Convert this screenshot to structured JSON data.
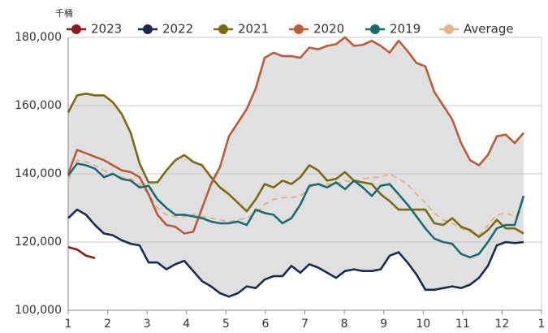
{
  "chart_data": {
    "type": "line",
    "y_label": "千桶",
    "x": [
      1,
      1.226,
      1.453,
      1.679,
      1.906,
      2.132,
      2.358,
      2.585,
      2.811,
      3.038,
      3.264,
      3.49,
      3.717,
      3.943,
      4.17,
      4.396,
      4.622,
      4.849,
      5.075,
      5.302,
      5.528,
      5.754,
      5.981,
      6.207,
      6.434,
      6.66,
      6.886,
      7.113,
      7.339,
      7.566,
      7.792,
      8.018,
      8.245,
      8.471,
      8.698,
      8.924,
      9.15,
      9.377,
      9.603,
      9.83,
      10.056,
      10.282,
      10.509,
      10.735,
      10.962,
      11.188,
      11.414,
      11.641,
      11.867,
      12.094,
      12.32,
      12.546
    ],
    "series": [
      {
        "name": "2023",
        "color": "#8b1a1a",
        "values": [
          118500,
          117800,
          116000,
          115300,
          null,
          null,
          null,
          null,
          null,
          null,
          null,
          null,
          null,
          null,
          null,
          null,
          null,
          null,
          null,
          null,
          null,
          null,
          null,
          null,
          null,
          null,
          null,
          null,
          null,
          null,
          null,
          null,
          null,
          null,
          null,
          null,
          null,
          null,
          null,
          null,
          null,
          null,
          null,
          null,
          null,
          null,
          null,
          null,
          null,
          null,
          null,
          null
        ]
      },
      {
        "name": "2022",
        "color": "#1a2b4c",
        "values": [
          127000,
          129500,
          128000,
          125000,
          122500,
          122000,
          120500,
          119500,
          119000,
          114000,
          114000,
          112000,
          113500,
          114500,
          111500,
          108500,
          107000,
          105000,
          104000,
          105000,
          107000,
          106500,
          109000,
          110000,
          110000,
          113000,
          111000,
          113500,
          112500,
          111000,
          109500,
          111500,
          112000,
          111500,
          111500,
          112000,
          116000,
          117000,
          114000,
          110500,
          106000,
          106000,
          106500,
          107000,
          106500,
          107500,
          109500,
          113000,
          119000,
          120000,
          119700,
          120000
        ]
      },
      {
        "name": "2021",
        "color": "#7a6a12",
        "values": [
          158000,
          163000,
          163500,
          163000,
          163000,
          161000,
          157500,
          152000,
          143000,
          137500,
          137500,
          141000,
          144000,
          145500,
          143500,
          142500,
          139000,
          136000,
          134000,
          131500,
          129000,
          132500,
          137000,
          136000,
          138000,
          137000,
          139000,
          142500,
          141000,
          138000,
          138500,
          140500,
          138000,
          137500,
          137000,
          134000,
          132000,
          129500,
          129500,
          129500,
          129500,
          125500,
          125000,
          127000,
          124500,
          123500,
          121500,
          123500,
          126500,
          124000,
          124000,
          122500
        ]
      },
      {
        "name": "2020",
        "color": "#b85c3c",
        "values": [
          140000,
          147000,
          146000,
          145000,
          144000,
          142500,
          141000,
          140500,
          139000,
          134000,
          128000,
          125000,
          124500,
          122500,
          123000,
          130000,
          137000,
          142000,
          151000,
          155000,
          159000,
          165000,
          174000,
          175500,
          174500,
          174500,
          174000,
          177000,
          176500,
          177500,
          178000,
          180000,
          177500,
          177800,
          179000,
          177500,
          175500,
          179000,
          176000,
          172500,
          171500,
          164000,
          160000,
          156000,
          149000,
          144000,
          142500,
          145500,
          151000,
          151500,
          149000,
          152000
        ]
      },
      {
        "name": "2019",
        "color": "#1b6b72",
        "values": [
          139500,
          143000,
          142500,
          141500,
          139000,
          140000,
          138500,
          138000,
          136000,
          136500,
          132500,
          130000,
          128000,
          128000,
          127500,
          127000,
          126000,
          125500,
          125500,
          126000,
          125000,
          129500,
          128500,
          128000,
          125500,
          127000,
          131000,
          136500,
          137000,
          136000,
          137500,
          135500,
          138000,
          136000,
          133500,
          136500,
          137000,
          134000,
          131000,
          127500,
          124000,
          121000,
          120000,
          119500,
          116500,
          115500,
          116500,
          120000,
          124000,
          125000,
          125000,
          133500
        ]
      },
      {
        "name": "Average",
        "color": "#e0b48c",
        "dashed": true,
        "values": [
          138000,
          144000,
          143500,
          142500,
          141000,
          140000,
          139000,
          138500,
          137000,
          134000,
          130000,
          128000,
          127500,
          127500,
          128000,
          127500,
          127000,
          126500,
          126000,
          126500,
          127000,
          128500,
          131000,
          132500,
          133000,
          133000,
          133500,
          136000,
          137000,
          137000,
          137000,
          138000,
          137500,
          138500,
          139000,
          139000,
          140000,
          138500,
          137000,
          134000,
          131500,
          128500,
          126500,
          125500,
          124000,
          123000,
          122000,
          125000,
          128000,
          128500,
          127500,
          129500
        ]
      }
    ],
    "band_color": "#e0e0e0",
    "xlim": [
      1,
      13
    ],
    "xticks": [
      1,
      2,
      3,
      4,
      5,
      6,
      7,
      8,
      9,
      10,
      11,
      12,
      {
        "value": 13,
        "label": "1"
      }
    ],
    "ylim": [
      100000,
      180000
    ],
    "yticks": [
      {
        "value": 100000,
        "label": "100,000"
      },
      {
        "value": 120000,
        "label": "120,000"
      },
      {
        "value": 140000,
        "label": "140,000"
      },
      {
        "value": 160000,
        "label": "160,000"
      },
      {
        "value": 180000,
        "label": "180,000"
      }
    ],
    "grid": true,
    "legend": "top"
  }
}
